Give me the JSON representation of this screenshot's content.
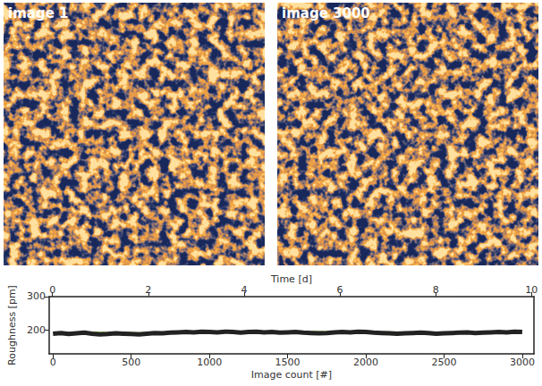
{
  "images": [
    {
      "label": "image 1"
    },
    {
      "label": "image 3000"
    }
  ],
  "chart_data": {
    "type": "line",
    "x_label": "Image count [#]",
    "x2_label": "Time [d]",
    "y_label": "Roughness [pm]",
    "xlim": [
      -25,
      3075
    ],
    "xticks": [
      0,
      500,
      1000,
      1500,
      2000,
      2500,
      3000
    ],
    "x2lim": [
      -0.07,
      10.05
    ],
    "x2ticks": [
      0,
      2,
      4,
      6,
      8,
      10
    ],
    "ylim": [
      130,
      300
    ],
    "yticks": [
      200,
      300
    ],
    "grid": false,
    "series": [
      {
        "color": "#8dc63f",
        "line_style": "solid",
        "x": [
          0,
          250,
          500,
          750,
          1000,
          1250,
          1500,
          1750,
          2000,
          2250,
          2500,
          2750,
          3000
        ],
        "values": [
          193,
          194,
          192,
          193,
          195,
          196,
          196,
          195,
          195,
          194,
          193,
          194,
          196
        ]
      },
      {
        "color": "#222222",
        "line_style": "solid",
        "x": [
          0,
          50,
          100,
          150,
          200,
          250,
          300,
          350,
          400,
          450,
          500,
          550,
          600,
          650,
          700,
          750,
          800,
          850,
          900,
          950,
          1000,
          1050,
          1100,
          1150,
          1200,
          1250,
          1300,
          1350,
          1400,
          1450,
          1500,
          1550,
          1600,
          1650,
          1700,
          1750,
          1800,
          1850,
          1900,
          1950,
          2000,
          2050,
          2100,
          2150,
          2200,
          2250,
          2300,
          2350,
          2400,
          2450,
          2500,
          2550,
          2600,
          2650,
          2700,
          2750,
          2800,
          2850,
          2900,
          2950,
          3000
        ],
        "values": [
          190,
          192,
          189,
          191,
          193,
          190,
          188,
          189,
          191,
          190,
          189,
          188,
          190,
          192,
          191,
          193,
          194,
          195,
          194,
          196,
          195,
          194,
          196,
          195,
          193,
          195,
          196,
          194,
          195,
          193,
          194,
          195,
          193,
          192,
          191,
          192,
          194,
          195,
          194,
          196,
          195,
          193,
          192,
          191,
          190,
          191,
          192,
          193,
          192,
          190,
          191,
          192,
          193,
          194,
          192,
          193,
          194,
          195,
          194,
          196,
          195
        ]
      }
    ]
  }
}
